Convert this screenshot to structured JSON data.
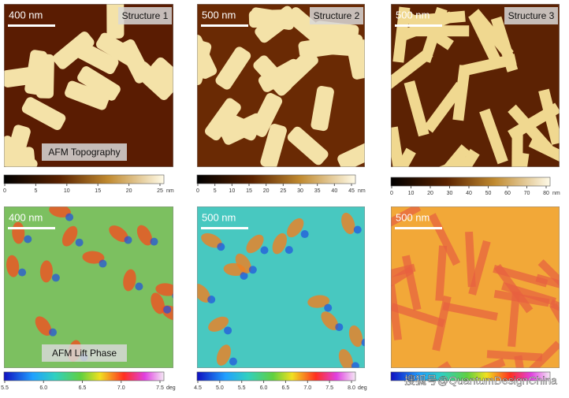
{
  "panels": [
    {
      "scale": "400 nm",
      "title": "Structure 1",
      "caption": "AFM Topography",
      "colorbar": {
        "ticks": [
          "0",
          "5",
          "10",
          "15",
          "20",
          "25"
        ],
        "unit": "nm"
      }
    },
    {
      "scale": "500 nm",
      "title": "Structure 2",
      "colorbar": {
        "ticks": [
          "0",
          "5",
          "10",
          "15",
          "20",
          "25",
          "30",
          "35",
          "40",
          "45"
        ],
        "unit": "nm"
      }
    },
    {
      "scale": "500 nm",
      "title": "Structure 3",
      "colorbar": {
        "ticks": [
          "0",
          "10",
          "20",
          "30",
          "40",
          "50",
          "60",
          "70",
          "80"
        ],
        "unit": "nm"
      }
    },
    {
      "scale": "400 nm",
      "caption": "AFM Lift Phase",
      "colorbar": {
        "ticks": [
          "5.5",
          "6.0",
          "6.5",
          "7.0",
          "7.5"
        ],
        "unit": "deg"
      }
    },
    {
      "scale": "500 nm",
      "colorbar": {
        "ticks": [
          "4.5",
          "5.0",
          "5.5",
          "6.0",
          "6.5",
          "7.0",
          "7.5",
          "8.0"
        ],
        "unit": "deg"
      }
    },
    {
      "scale": "500 nm"
    }
  ],
  "watermark": "搜狐号@QuantumDesignChina"
}
